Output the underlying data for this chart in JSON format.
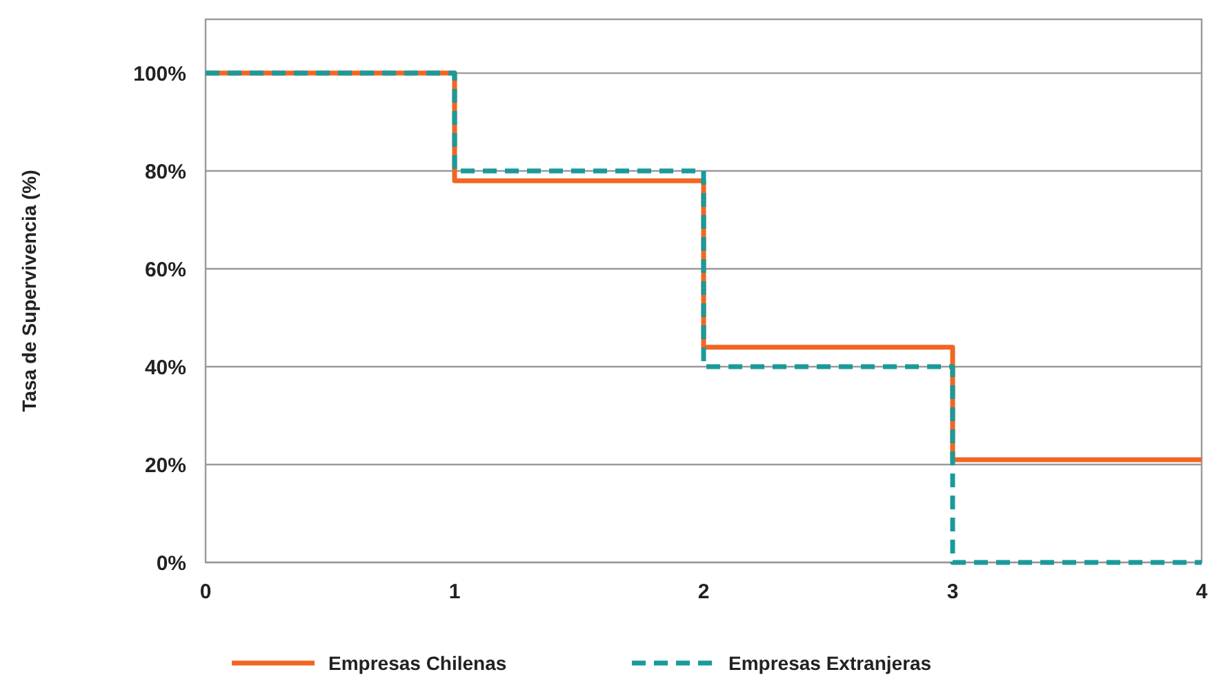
{
  "chart_data": {
    "type": "step",
    "ylabel": "Tasa de Supervivencia (%)",
    "x": [
      0,
      1,
      2,
      3,
      4
    ],
    "xlim": [
      0,
      4
    ],
    "xticks": [
      0,
      1,
      2,
      3,
      4
    ],
    "ylim": [
      0,
      111
    ],
    "yticks": [
      {
        "value": 0,
        "label": "0%"
      },
      {
        "value": 20,
        "label": "20%"
      },
      {
        "value": 40,
        "label": "40%"
      },
      {
        "value": 60,
        "label": "60%"
      },
      {
        "value": 80,
        "label": "80%"
      },
      {
        "value": 100,
        "label": "100%"
      }
    ],
    "grid": "y",
    "legend": "bottom",
    "marker": "none",
    "series": [
      {
        "name": "Empresas Chilenas",
        "color": "#f26522",
        "line_style": "solid",
        "values": [
          100,
          78,
          44,
          21,
          21
        ]
      },
      {
        "name": "Empresas Extranjeras",
        "color": "#1a9a9a",
        "line_style": "dashed",
        "values": [
          100,
          80,
          40,
          0,
          0
        ]
      }
    ]
  }
}
